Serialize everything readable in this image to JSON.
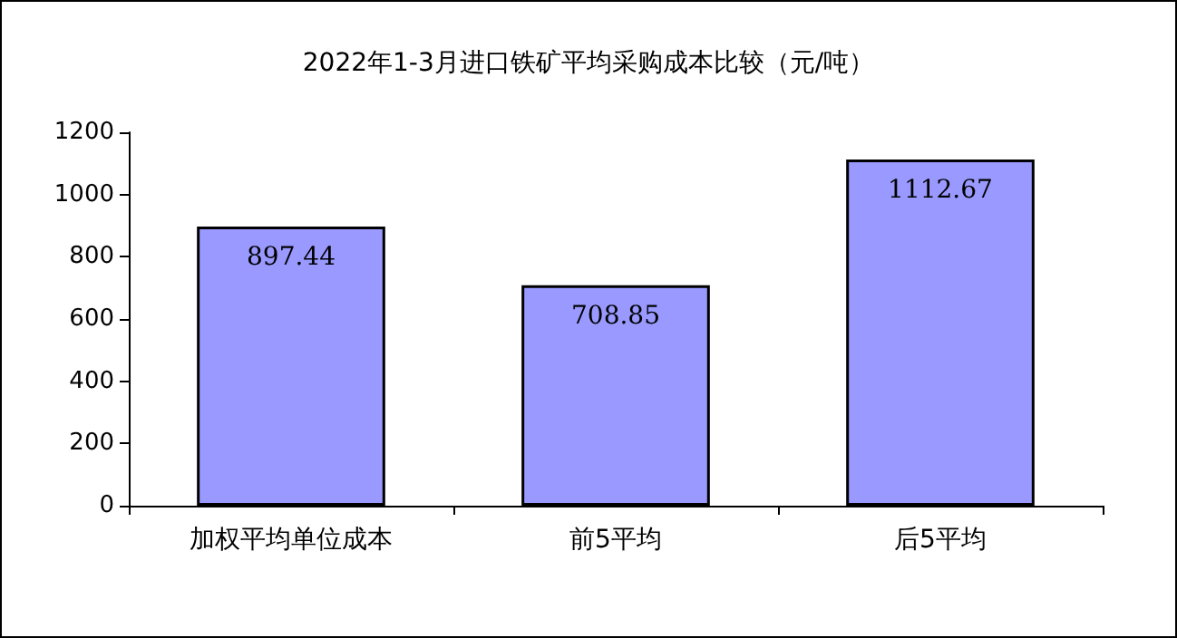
{
  "chart_data": {
    "type": "bar",
    "title": "2022年1-3月进口铁矿平均采购成本比较（元/吨）",
    "categories": [
      "加权平均单位成本",
      "前5平均",
      "后5平均"
    ],
    "values": [
      897.44,
      708.85,
      1112.67
    ],
    "color": "#9999ff",
    "ylim": [
      0,
      1200
    ],
    "yticks": [
      0,
      200,
      400,
      600,
      800,
      1000,
      1200
    ],
    "grid": false,
    "data_labels": true
  }
}
